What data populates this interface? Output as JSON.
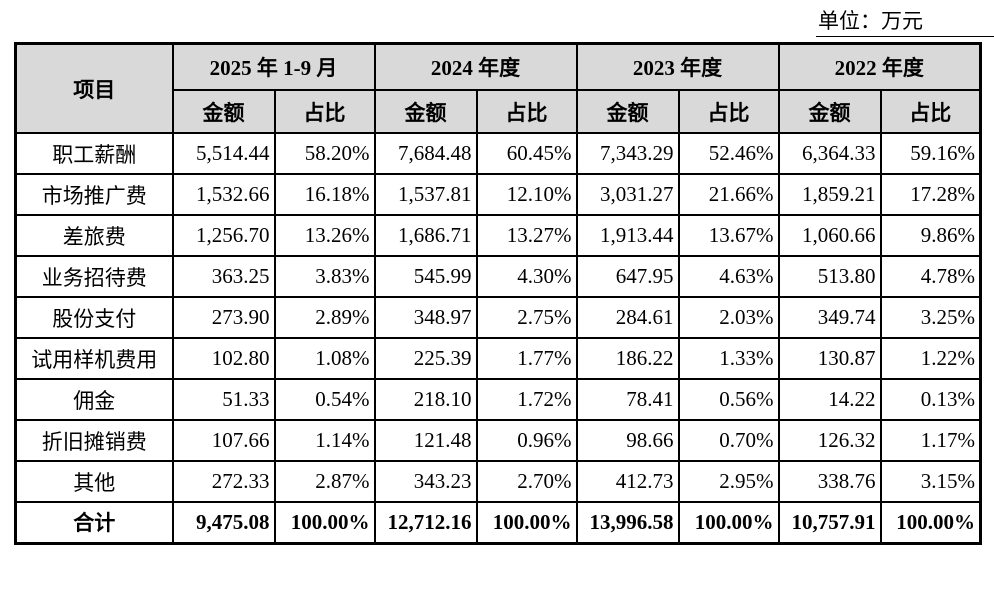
{
  "unit_label": "单位：万元",
  "colors": {
    "header_bg": "#d9d9d9",
    "border": "#000000",
    "text": "#000000",
    "page_bg": "#ffffff"
  },
  "table": {
    "item_header": "项目",
    "amount_header": "金额",
    "ratio_header": "占比",
    "periods": [
      "2025 年 1-9 月",
      "2024 年度",
      "2023 年度",
      "2022 年度"
    ],
    "rows": [
      {
        "item": "职工薪酬",
        "values": [
          "5,514.44",
          "58.20%",
          "7,684.48",
          "60.45%",
          "7,343.29",
          "52.46%",
          "6,364.33",
          "59.16%"
        ]
      },
      {
        "item": "市场推广费",
        "values": [
          "1,532.66",
          "16.18%",
          "1,537.81",
          "12.10%",
          "3,031.27",
          "21.66%",
          "1,859.21",
          "17.28%"
        ]
      },
      {
        "item": "差旅费",
        "values": [
          "1,256.70",
          "13.26%",
          "1,686.71",
          "13.27%",
          "1,913.44",
          "13.67%",
          "1,060.66",
          "9.86%"
        ]
      },
      {
        "item": "业务招待费",
        "values": [
          "363.25",
          "3.83%",
          "545.99",
          "4.30%",
          "647.95",
          "4.63%",
          "513.80",
          "4.78%"
        ]
      },
      {
        "item": "股份支付",
        "values": [
          "273.90",
          "2.89%",
          "348.97",
          "2.75%",
          "284.61",
          "2.03%",
          "349.74",
          "3.25%"
        ]
      },
      {
        "item": "试用样机费用",
        "values": [
          "102.80",
          "1.08%",
          "225.39",
          "1.77%",
          "186.22",
          "1.33%",
          "130.87",
          "1.22%"
        ]
      },
      {
        "item": "佣金",
        "values": [
          "51.33",
          "0.54%",
          "218.10",
          "1.72%",
          "78.41",
          "0.56%",
          "14.22",
          "0.13%"
        ]
      },
      {
        "item": "折旧摊销费",
        "values": [
          "107.66",
          "1.14%",
          "121.48",
          "0.96%",
          "98.66",
          "0.70%",
          "126.32",
          "1.17%"
        ]
      },
      {
        "item": "其他",
        "values": [
          "272.33",
          "2.87%",
          "343.23",
          "2.70%",
          "412.73",
          "2.95%",
          "338.76",
          "3.15%"
        ]
      }
    ],
    "total": {
      "item": "合计",
      "values": [
        "9,475.08",
        "100.00%",
        "12,712.16",
        "100.00%",
        "13,996.58",
        "100.00%",
        "10,757.91",
        "100.00%"
      ]
    }
  }
}
